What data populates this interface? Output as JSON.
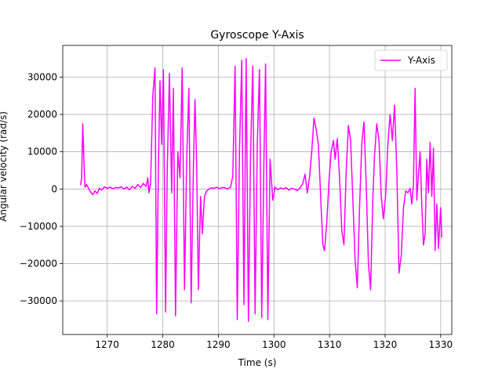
{
  "chart_data": {
    "type": "line",
    "title": "Gyroscope Y-Axis",
    "xlabel": "Time (s)",
    "ylabel": "Angular velocity (rad/s)",
    "xlim": [
      1262,
      1332
    ],
    "ylim": [
      -39000,
      38500
    ],
    "x_ticks": [
      1270,
      1280,
      1290,
      1300,
      1310,
      1320,
      1330
    ],
    "y_ticks": [
      -30000,
      -20000,
      -10000,
      0,
      10000,
      20000,
      30000
    ],
    "grid": true,
    "legend_position": "top-right",
    "series": [
      {
        "name": "Y-Axis",
        "color": "#ff00ff",
        "points": [
          [
            1265.2,
            1000
          ],
          [
            1265.4,
            3000
          ],
          [
            1265.6,
            17500
          ],
          [
            1265.8,
            8000
          ],
          [
            1266.0,
            500
          ],
          [
            1266.3,
            1200
          ],
          [
            1266.6,
            300
          ],
          [
            1267.0,
            -800
          ],
          [
            1267.4,
            -1500
          ],
          [
            1267.8,
            -500
          ],
          [
            1268.2,
            -1200
          ],
          [
            1268.6,
            200
          ],
          [
            1269.0,
            -300
          ],
          [
            1269.5,
            600
          ],
          [
            1270.0,
            200
          ],
          [
            1270.5,
            500
          ],
          [
            1271.0,
            100
          ],
          [
            1271.5,
            400
          ],
          [
            1272.0,
            300
          ],
          [
            1272.5,
            600
          ],
          [
            1273.0,
            0
          ],
          [
            1273.5,
            500
          ],
          [
            1274.0,
            -200
          ],
          [
            1274.5,
            700
          ],
          [
            1275.0,
            200
          ],
          [
            1275.5,
            1200
          ],
          [
            1276.0,
            400
          ],
          [
            1276.5,
            1500
          ],
          [
            1277.0,
            700
          ],
          [
            1277.3,
            3000
          ],
          [
            1277.5,
            -1000
          ],
          [
            1277.8,
            1500
          ],
          [
            1278.2,
            25000
          ],
          [
            1278.6,
            32500
          ],
          [
            1278.9,
            -33500
          ],
          [
            1279.2,
            5000
          ],
          [
            1279.5,
            29000
          ],
          [
            1279.8,
            12000
          ],
          [
            1280.1,
            32000
          ],
          [
            1280.5,
            -33000
          ],
          [
            1280.8,
            5000
          ],
          [
            1281.2,
            31000
          ],
          [
            1281.6,
            -1000
          ],
          [
            1281.9,
            27000
          ],
          [
            1282.3,
            -34000
          ],
          [
            1282.7,
            10000
          ],
          [
            1283.1,
            3000
          ],
          [
            1283.5,
            32500
          ],
          [
            1283.9,
            -27000
          ],
          [
            1284.3,
            8000
          ],
          [
            1284.7,
            27000
          ],
          [
            1285.1,
            -30500
          ],
          [
            1285.5,
            5000
          ],
          [
            1285.8,
            24000
          ],
          [
            1286.1,
            6000
          ],
          [
            1286.4,
            -27000
          ],
          [
            1286.8,
            -2000
          ],
          [
            1287.1,
            -12000
          ],
          [
            1287.5,
            -2000
          ],
          [
            1287.9,
            -500
          ],
          [
            1288.3,
            0
          ],
          [
            1288.7,
            300
          ],
          [
            1289.2,
            200
          ],
          [
            1289.7,
            500
          ],
          [
            1290.2,
            100
          ],
          [
            1290.7,
            400
          ],
          [
            1291.2,
            300
          ],
          [
            1291.7,
            0
          ],
          [
            1292.2,
            500
          ],
          [
            1292.6,
            3500
          ],
          [
            1293.0,
            33000
          ],
          [
            1293.4,
            -35000
          ],
          [
            1293.8,
            10000
          ],
          [
            1294.2,
            34500
          ],
          [
            1294.6,
            -31000
          ],
          [
            1295.0,
            35000
          ],
          [
            1295.4,
            -35500
          ],
          [
            1295.8,
            10000
          ],
          [
            1296.2,
            33000
          ],
          [
            1296.6,
            -33500
          ],
          [
            1297.0,
            12000
          ],
          [
            1297.4,
            32000
          ],
          [
            1297.8,
            -34500
          ],
          [
            1298.2,
            8000
          ],
          [
            1298.5,
            33500
          ],
          [
            1298.9,
            -35000
          ],
          [
            1299.3,
            8000
          ],
          [
            1299.8,
            -3000
          ],
          [
            1300.2,
            500
          ],
          [
            1300.7,
            -200
          ],
          [
            1301.2,
            300
          ],
          [
            1301.7,
            0
          ],
          [
            1302.2,
            400
          ],
          [
            1302.7,
            -300
          ],
          [
            1303.2,
            200
          ],
          [
            1303.7,
            0
          ],
          [
            1304.2,
            -400
          ],
          [
            1304.7,
            300
          ],
          [
            1305.2,
            1500
          ],
          [
            1305.6,
            4000
          ],
          [
            1306.0,
            -1000
          ],
          [
            1306.4,
            3000
          ],
          [
            1306.8,
            10000
          ],
          [
            1307.2,
            19000
          ],
          [
            1307.6,
            16000
          ],
          [
            1308.0,
            12000
          ],
          [
            1308.4,
            -2000
          ],
          [
            1308.8,
            -15000
          ],
          [
            1309.1,
            -16500
          ],
          [
            1309.5,
            -9000
          ],
          [
            1309.9,
            2000
          ],
          [
            1310.3,
            10000
          ],
          [
            1310.7,
            13000
          ],
          [
            1311.0,
            8000
          ],
          [
            1311.4,
            13500
          ],
          [
            1311.8,
            3000
          ],
          [
            1312.2,
            -11000
          ],
          [
            1312.6,
            -15000
          ],
          [
            1313.0,
            5000
          ],
          [
            1313.4,
            17000
          ],
          [
            1313.8,
            13000
          ],
          [
            1314.2,
            -3000
          ],
          [
            1314.6,
            -19000
          ],
          [
            1315.0,
            -26500
          ],
          [
            1315.4,
            -5000
          ],
          [
            1315.8,
            12000
          ],
          [
            1316.2,
            18000
          ],
          [
            1316.6,
            1000
          ],
          [
            1317.0,
            -20000
          ],
          [
            1317.4,
            -27000
          ],
          [
            1317.8,
            -2000
          ],
          [
            1318.1,
            9000
          ],
          [
            1318.5,
            17500
          ],
          [
            1318.9,
            13000
          ],
          [
            1319.3,
            -2000
          ],
          [
            1319.7,
            -8000
          ],
          [
            1320.1,
            -1500
          ],
          [
            1320.5,
            12000
          ],
          [
            1320.9,
            20000
          ],
          [
            1321.3,
            13000
          ],
          [
            1321.7,
            22500
          ],
          [
            1322.1,
            5000
          ],
          [
            1322.5,
            -22500
          ],
          [
            1322.9,
            -18000
          ],
          [
            1323.3,
            -5000
          ],
          [
            1323.7,
            -500
          ],
          [
            1324.1,
            -1000
          ],
          [
            1324.5,
            200
          ],
          [
            1324.8,
            -4000
          ],
          [
            1325.1,
            1000
          ],
          [
            1325.4,
            27000
          ],
          [
            1325.7,
            -3000
          ],
          [
            1326.0,
            4000
          ],
          [
            1326.3,
            10000
          ],
          [
            1326.6,
            -4000
          ],
          [
            1326.9,
            -15000
          ],
          [
            1327.2,
            -12000
          ],
          [
            1327.5,
            8000
          ],
          [
            1327.8,
            -1000
          ],
          [
            1328.1,
            12500
          ],
          [
            1328.4,
            -2000
          ],
          [
            1328.7,
            11000
          ],
          [
            1329.0,
            -16500
          ],
          [
            1329.3,
            -4000
          ],
          [
            1329.6,
            -16000
          ],
          [
            1330.0,
            -5000
          ],
          [
            1330.2,
            -13000
          ]
        ]
      }
    ]
  }
}
